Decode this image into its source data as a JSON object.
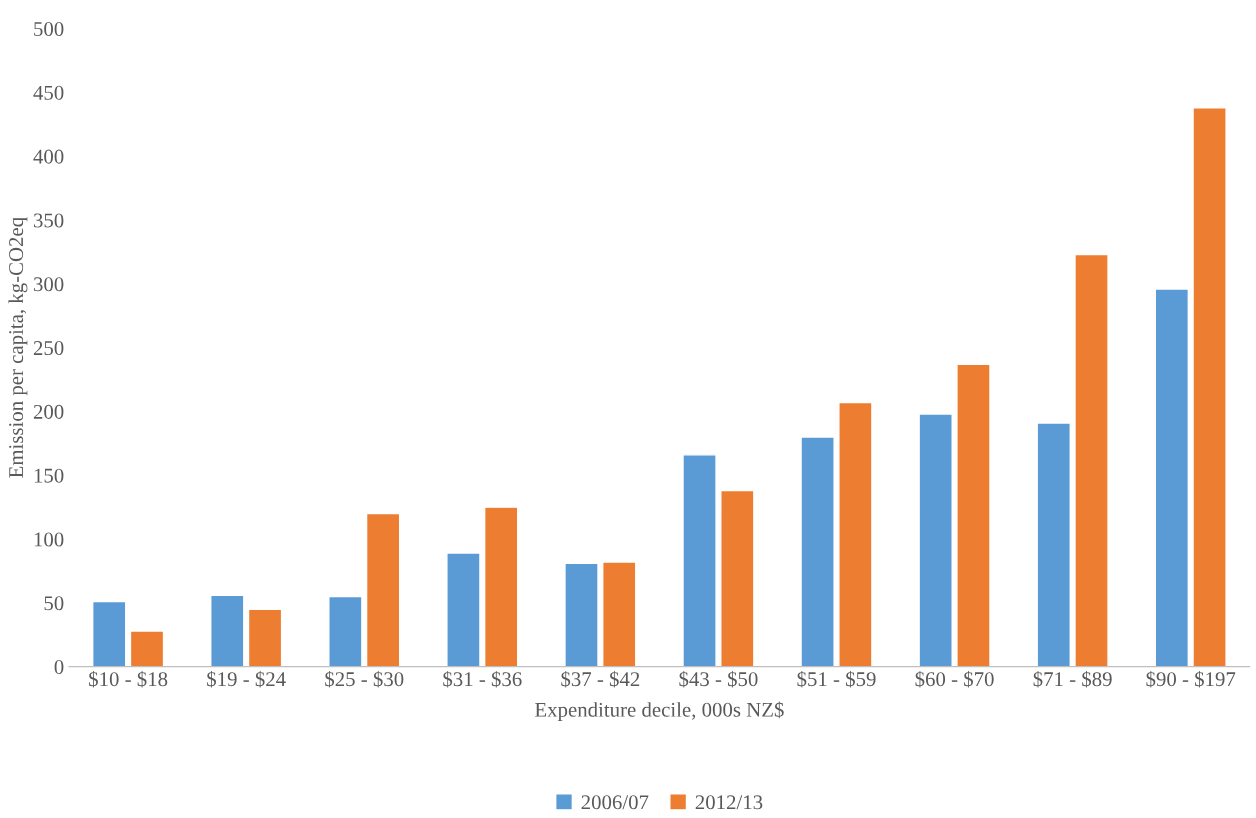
{
  "chart_data": {
    "type": "bar",
    "xlabel": "Expenditure decile, 000s NZ$",
    "ylabel": "Emission per capita, kg-CO2eq",
    "categories": [
      "$10 - $18",
      "$19 - $24",
      "$25 - $30",
      "$31 - $36",
      "$37 - $42",
      "$43 - $50",
      "$51 - $59",
      "$60 - $70",
      "$71 - $89",
      "$90 - $197"
    ],
    "series": [
      {
        "name": "2006/07",
        "color": "#5b9bd5",
        "values": [
          51,
          56,
          55,
          89,
          81,
          166,
          180,
          198,
          191,
          296
        ]
      },
      {
        "name": "2012/13",
        "color": "#ed7d31",
        "values": [
          28,
          45,
          120,
          125,
          82,
          138,
          207,
          237,
          323,
          438
        ]
      }
    ],
    "ylim": [
      0,
      500
    ],
    "yticks": [
      0,
      50,
      100,
      150,
      200,
      250,
      300,
      350,
      400,
      450,
      500
    ],
    "grid": false,
    "legend": "bottom"
  }
}
